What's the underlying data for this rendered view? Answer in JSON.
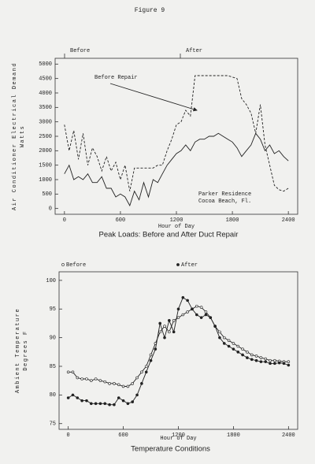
{
  "header": {
    "title": "Figure 9"
  },
  "chart_data": [
    {
      "type": "line",
      "title": "Peak Loads: Before and After Duct Repair",
      "x_label": "Hour of Day",
      "y_label": "Air Conditioner Electrical Demand",
      "y_unit": "Watts",
      "annotations": [
        "Before Repair",
        "Parker Residence",
        "Cocoa Beach, Fl."
      ],
      "x": [
        0,
        50,
        100,
        150,
        200,
        250,
        300,
        350,
        400,
        450,
        500,
        550,
        600,
        650,
        700,
        750,
        800,
        850,
        900,
        950,
        1000,
        1050,
        1100,
        1150,
        1200,
        1250,
        1300,
        1350,
        1400,
        1450,
        1500,
        1550,
        1600,
        1650,
        1700,
        1750,
        1800,
        1850,
        1900,
        1950,
        2000,
        2050,
        2100,
        2150,
        2200,
        2250,
        2300,
        2350,
        2400
      ],
      "series": [
        {
          "name": "Before",
          "color": "#222",
          "style": "dashed",
          "marker": "none",
          "values": [
            2900,
            2000,
            2700,
            1700,
            2600,
            1500,
            2100,
            1800,
            1300,
            1800,
            1300,
            1600,
            1000,
            1500,
            600,
            1400,
            1400,
            1400,
            1400,
            1400,
            1500,
            1500,
            2000,
            2400,
            2900,
            3000,
            3400,
            3200,
            4600,
            4600,
            4600,
            4600,
            4600,
            4600,
            4600,
            4600,
            4550,
            4500,
            3800,
            3600,
            3300,
            2600,
            3600,
            2200,
            1500,
            800,
            650,
            600,
            700
          ]
        },
        {
          "name": "After",
          "color": "#222",
          "style": "solid",
          "marker": "none",
          "values": [
            1200,
            1500,
            1000,
            1100,
            1000,
            1200,
            900,
            900,
            1100,
            700,
            700,
            400,
            500,
            400,
            100,
            600,
            300,
            900,
            400,
            1000,
            900,
            1200,
            1500,
            1700,
            1900,
            2000,
            2200,
            2000,
            2300,
            2400,
            2400,
            2500,
            2500,
            2600,
            2500,
            2400,
            2300,
            2100,
            1800,
            2000,
            2200,
            2600,
            2400,
            2000,
            2200,
            1900,
            2000,
            1800,
            1650
          ]
        }
      ],
      "xlim": [
        -100,
        2500
      ],
      "xticks": [
        0,
        600,
        1200,
        1800,
        2400
      ],
      "ylim": [
        -200,
        5200
      ],
      "yticks": [
        0,
        500,
        1000,
        1500,
        2000,
        2500,
        3000,
        3500,
        4000,
        4500,
        5000
      ]
    },
    {
      "type": "line",
      "title": "Temperature Conditions",
      "x_label": "Hour of Day",
      "y_label": "Ambient Temperature",
      "y_unit": "Degrees F",
      "x": [
        0,
        50,
        100,
        150,
        200,
        250,
        300,
        350,
        400,
        450,
        500,
        550,
        600,
        650,
        700,
        750,
        800,
        850,
        900,
        950,
        1000,
        1050,
        1100,
        1150,
        1200,
        1250,
        1300,
        1350,
        1400,
        1450,
        1500,
        1550,
        1600,
        1650,
        1700,
        1750,
        1800,
        1850,
        1900,
        1950,
        2000,
        2050,
        2100,
        2150,
        2200,
        2250,
        2300,
        2350,
        2400
      ],
      "series": [
        {
          "name": "Before",
          "color": "#222",
          "style": "solid",
          "marker": "open-circle",
          "values": [
            84,
            84,
            83,
            82.8,
            82.8,
            82.5,
            82.8,
            82.5,
            82.3,
            82,
            82,
            81.8,
            81.5,
            81.5,
            82,
            83,
            84,
            85,
            87,
            89,
            91,
            92,
            91,
            93,
            93.5,
            94,
            94.5,
            95,
            95.5,
            95.3,
            94.5,
            93.5,
            92,
            91,
            90,
            89.5,
            89,
            88.5,
            88,
            87.5,
            87,
            86.8,
            86.5,
            86.3,
            86,
            86,
            85.9,
            85.8,
            85.8
          ]
        },
        {
          "name": "After",
          "color": "#222",
          "style": "solid",
          "marker": "filled-circle",
          "values": [
            79.5,
            80,
            79.5,
            79,
            79,
            78.5,
            78.5,
            78.5,
            78.5,
            78.3,
            78.3,
            79.5,
            79,
            78.5,
            78.8,
            80,
            82,
            84,
            86,
            88,
            92.5,
            90,
            93,
            91,
            95,
            97,
            96.5,
            95,
            94,
            93.5,
            94,
            93.5,
            92,
            90,
            89,
            88.5,
            88,
            87.5,
            87,
            86.5,
            86.2,
            86,
            85.8,
            85.8,
            85.5,
            85.5,
            85.6,
            85.5,
            85.2
          ]
        }
      ],
      "xlim": [
        -100,
        2500
      ],
      "xticks": [
        0,
        600,
        1200,
        1800,
        2400
      ],
      "ylim": [
        74,
        101.5
      ],
      "yticks": [
        75,
        80,
        85,
        90,
        95,
        100
      ]
    }
  ]
}
